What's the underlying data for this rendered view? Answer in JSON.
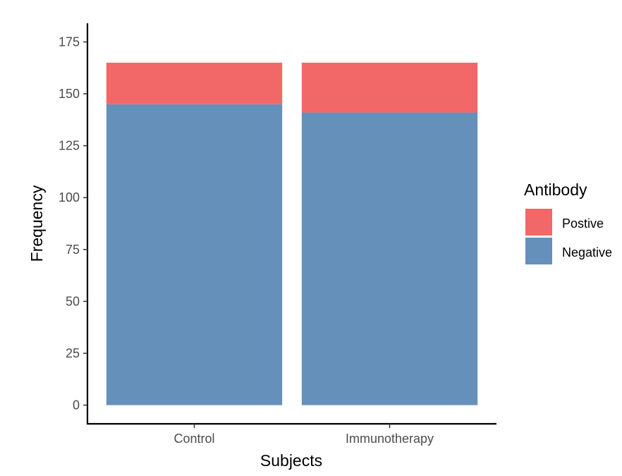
{
  "chart_data": {
    "type": "bar",
    "stacked": true,
    "categories": [
      "Control",
      "Immunotherapy"
    ],
    "series": [
      {
        "name": "Negative",
        "values": [
          145,
          141
        ],
        "color": "#6590BA"
      },
      {
        "name": "Postive",
        "values": [
          20,
          24
        ],
        "color": "#F26767"
      }
    ],
    "title": "",
    "xlabel": "Subjects",
    "ylabel": "Frequency",
    "ylim": [
      -9,
      184
    ],
    "yticks": [
      0,
      25,
      50,
      75,
      100,
      125,
      150,
      175
    ],
    "grid": false,
    "legend": {
      "title": "Antibody",
      "placement": "right",
      "entries": [
        "Postive",
        "Negative"
      ]
    }
  }
}
